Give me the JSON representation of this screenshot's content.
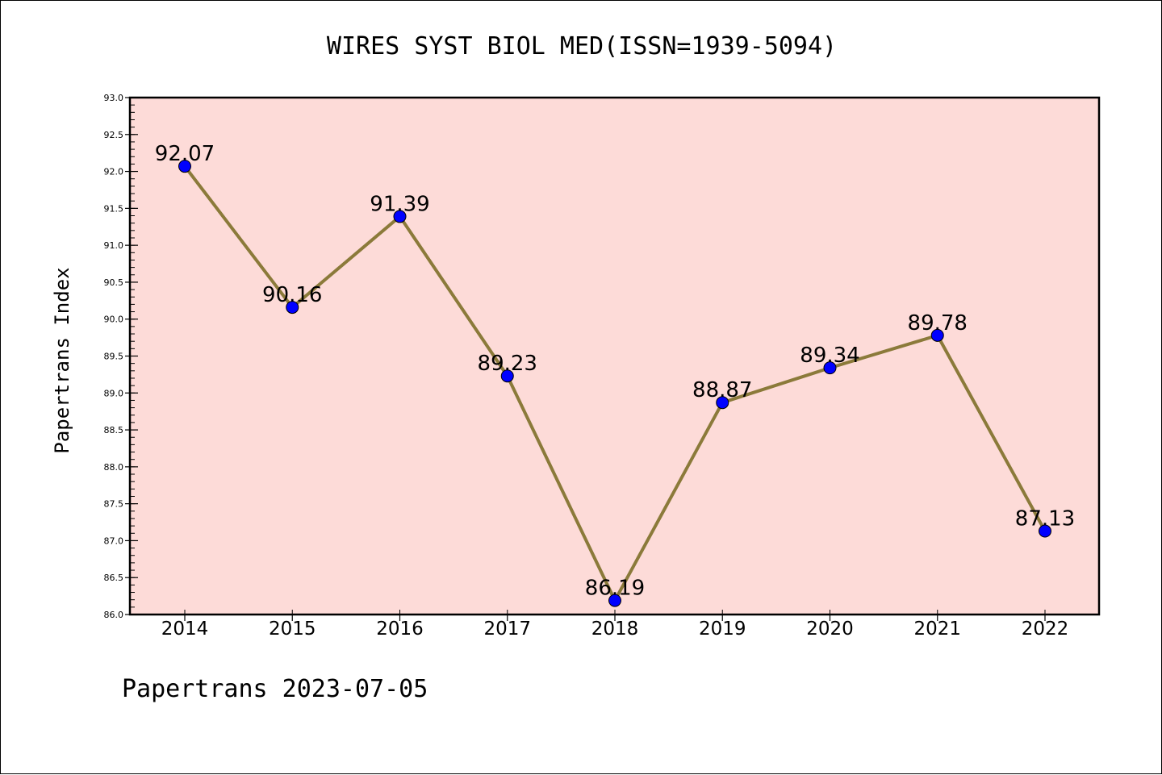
{
  "chart_data": {
    "type": "line",
    "title": "WIRES SYST BIOL MED(ISSN=1939-5094)",
    "xlabel": "",
    "ylabel": "Papertrans Index",
    "footer": "Papertrans 2023-07-05",
    "categories": [
      "2014",
      "2015",
      "2016",
      "2017",
      "2018",
      "2019",
      "2020",
      "2021",
      "2022"
    ],
    "series": [
      {
        "values": [
          92.07,
          90.16,
          91.39,
          89.23,
          86.19,
          88.87,
          89.34,
          89.78,
          87.13
        ],
        "labels": [
          "92.07",
          "90.16",
          "91.39",
          "89.23",
          "86.19",
          "88.87",
          "89.34",
          "89.78",
          "87.13"
        ]
      }
    ],
    "ylim": [
      86.0,
      93.0
    ],
    "yticks": [
      "86.0",
      "86.5",
      "87.0",
      "87.5",
      "88.0",
      "88.5",
      "89.0",
      "89.5",
      "90.0",
      "90.5",
      "91.0",
      "91.5",
      "92.0",
      "92.5",
      "93.0"
    ],
    "grid": false,
    "legend": "none",
    "colors": {
      "plot_background": "#fddbd8",
      "line": "#8b7a3a",
      "marker": "#0000ff"
    }
  }
}
